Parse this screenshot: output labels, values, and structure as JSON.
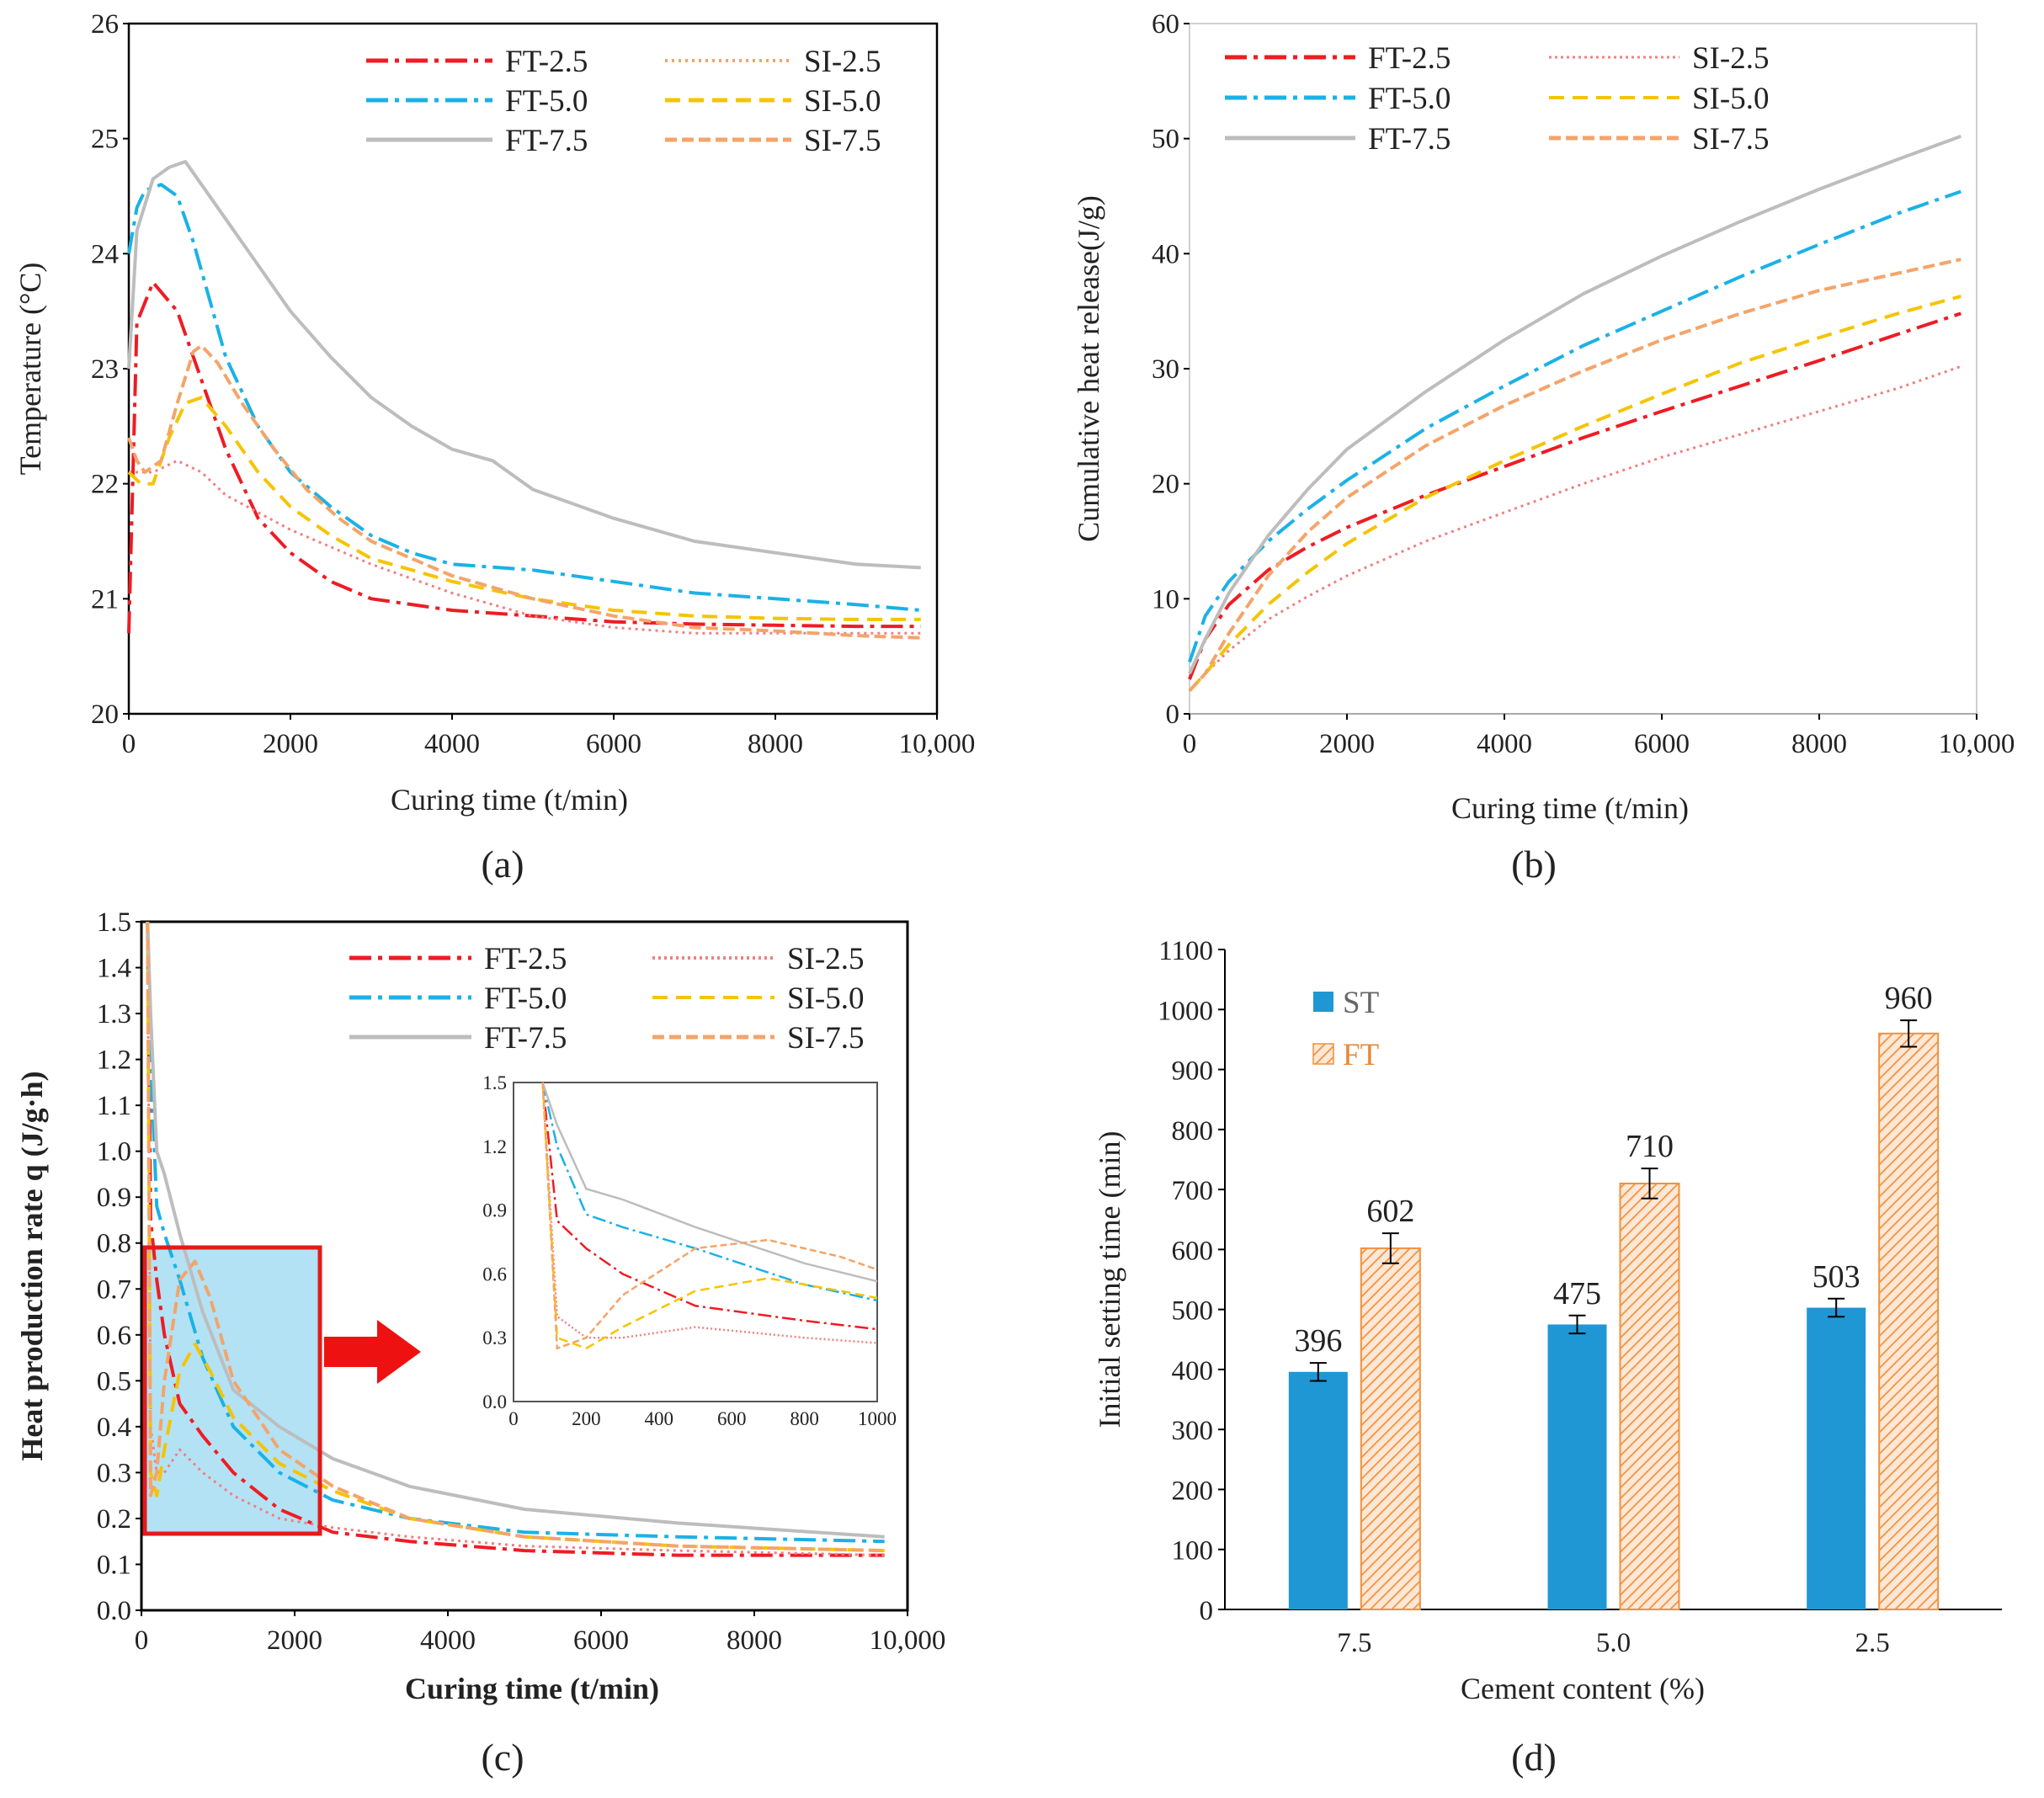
{
  "colors": {
    "FT-2.5": "#ee1c24",
    "FT-5.0": "#1ab2e6",
    "FT-7.5": "#bdbdbd",
    "SI-2.5": "#f08080",
    "SI-5.0": "#f5c400",
    "SI-7.5": "#f4a46a",
    "ST_bar": "#1f97d4",
    "FT_bar": "#f2913c"
  },
  "chart_data": [
    {
      "panel": "a",
      "caption": "(a)",
      "type": "line",
      "xlabel": "Curing time (t/min)",
      "ylabel": "Temperature (°C)",
      "xlim": [
        0,
        10000
      ],
      "ylim": [
        20,
        26
      ],
      "xticks": [
        "0",
        "2000",
        "4000",
        "6000",
        "8000",
        "10,000"
      ],
      "yticks": [
        "20",
        "21",
        "22",
        "23",
        "24",
        "25",
        "26"
      ],
      "legend": [
        "FT-2.5",
        "SI-2.5",
        "FT-5.0",
        "SI-5.0",
        "FT-7.5",
        "SI-7.5"
      ],
      "series": [
        {
          "name": "FT-2.5",
          "x": [
            0,
            100,
            300,
            600,
            900,
            1200,
            1600,
            2000,
            2500,
            3000,
            4000,
            5000,
            6000,
            7000,
            8000,
            9000,
            9800
          ],
          "y": [
            20.7,
            23.4,
            23.75,
            23.5,
            22.9,
            22.3,
            21.7,
            21.4,
            21.15,
            21.0,
            20.9,
            20.85,
            20.8,
            20.78,
            20.77,
            20.76,
            20.76
          ]
        },
        {
          "name": "SI-2.5",
          "x": [
            0,
            100,
            300,
            600,
            900,
            1200,
            1600,
            2000,
            2500,
            3000,
            4000,
            5000,
            6000,
            7000,
            8000,
            9000,
            9800
          ],
          "y": [
            22.1,
            22.1,
            22.1,
            22.2,
            22.1,
            21.9,
            21.75,
            21.6,
            21.45,
            21.3,
            21.05,
            20.85,
            20.75,
            20.7,
            20.7,
            20.7,
            20.7
          ]
        },
        {
          "name": "FT-5.0",
          "x": [
            0,
            100,
            200,
            400,
            600,
            800,
            1000,
            1200,
            1600,
            2000,
            2500,
            3000,
            3500,
            4000,
            5000,
            6000,
            7000,
            8000,
            9000,
            9800
          ],
          "y": [
            24.0,
            24.4,
            24.55,
            24.6,
            24.5,
            24.1,
            23.6,
            23.1,
            22.5,
            22.1,
            21.8,
            21.55,
            21.4,
            21.3,
            21.25,
            21.15,
            21.05,
            21.0,
            20.95,
            20.9
          ]
        },
        {
          "name": "SI-5.0",
          "x": [
            0,
            150,
            300,
            500,
            700,
            900,
            1200,
            1600,
            2000,
            2500,
            3000,
            4000,
            5000,
            6000,
            7000,
            8000,
            9000,
            9800
          ],
          "y": [
            22.1,
            22.0,
            22.0,
            22.4,
            22.7,
            22.75,
            22.5,
            22.1,
            21.8,
            21.55,
            21.35,
            21.15,
            21.0,
            20.9,
            20.85,
            20.83,
            20.82,
            20.82
          ]
        },
        {
          "name": "FT-7.5",
          "x": [
            0,
            100,
            300,
            500,
            700,
            900,
            1200,
            1600,
            2000,
            2500,
            3000,
            3500,
            4000,
            4500,
            5000,
            6000,
            7000,
            8000,
            9000,
            9800
          ],
          "y": [
            23.0,
            24.2,
            24.65,
            24.75,
            24.8,
            24.6,
            24.3,
            23.9,
            23.5,
            23.1,
            22.75,
            22.5,
            22.3,
            22.2,
            21.95,
            21.7,
            21.5,
            21.4,
            21.3,
            21.27
          ]
        },
        {
          "name": "SI-7.5",
          "x": [
            0,
            100,
            200,
            400,
            600,
            800,
            900,
            1100,
            1400,
            1800,
            2200,
            2600,
            3000,
            4000,
            5000,
            6000,
            7000,
            8000,
            9000,
            9800
          ],
          "y": [
            22.4,
            22.2,
            22.1,
            22.2,
            22.7,
            23.15,
            23.2,
            23.05,
            22.7,
            22.3,
            21.95,
            21.7,
            21.5,
            21.2,
            21.0,
            20.85,
            20.75,
            20.72,
            20.68,
            20.66
          ]
        }
      ]
    },
    {
      "panel": "b",
      "caption": "(b)",
      "type": "line",
      "xlabel": "Curing time (t/min)",
      "ylabel": "Cumulative heat release(J/g)",
      "xlim": [
        0,
        10000
      ],
      "ylim": [
        0,
        60
      ],
      "xticks": [
        "0",
        "2000",
        "4000",
        "6000",
        "8000",
        "10,000"
      ],
      "yticks": [
        "0",
        "10",
        "20",
        "30",
        "40",
        "50",
        "60"
      ],
      "legend": [
        "FT-2.5",
        "SI-2.5",
        "FT-5.0",
        "SI-5.0",
        "FT-7.5",
        "SI-7.5"
      ],
      "series": [
        {
          "name": "FT-2.5",
          "x": [
            0,
            200,
            500,
            1000,
            1500,
            2000,
            3000,
            4000,
            5000,
            6000,
            7000,
            8000,
            9000,
            9800
          ],
          "y": [
            3,
            6.5,
            9.5,
            12.5,
            14.5,
            16.2,
            19,
            21.5,
            24,
            26.3,
            28.5,
            30.7,
            33,
            34.8
          ]
        },
        {
          "name": "SI-2.5",
          "x": [
            0,
            200,
            500,
            1000,
            1500,
            2000,
            3000,
            4000,
            5000,
            6000,
            7000,
            8000,
            9000,
            9800
          ],
          "y": [
            2,
            3.5,
            5.5,
            8.2,
            10.2,
            12,
            15,
            17.5,
            20,
            22.3,
            24.3,
            26.3,
            28.3,
            30.2
          ]
        },
        {
          "name": "FT-5.0",
          "x": [
            0,
            200,
            500,
            1000,
            1500,
            2000,
            3000,
            4000,
            5000,
            6000,
            7000,
            8000,
            9000,
            9800
          ],
          "y": [
            4.5,
            8.5,
            11.5,
            15,
            17.8,
            20.3,
            24.8,
            28.5,
            32,
            35,
            38,
            40.8,
            43.5,
            45.4
          ]
        },
        {
          "name": "SI-5.0",
          "x": [
            0,
            200,
            500,
            1000,
            1500,
            2000,
            3000,
            4000,
            5000,
            6000,
            7000,
            8000,
            9000,
            9800
          ],
          "y": [
            2,
            3.5,
            6,
            9.5,
            12.3,
            14.8,
            18.8,
            22,
            25,
            27.8,
            30.5,
            32.7,
            34.8,
            36.3
          ]
        },
        {
          "name": "FT-7.5",
          "x": [
            0,
            200,
            500,
            1000,
            1500,
            2000,
            3000,
            4000,
            5000,
            6000,
            7000,
            8000,
            9000,
            9800
          ],
          "y": [
            3.5,
            6.5,
            10.5,
            15.5,
            19.5,
            23,
            28,
            32.5,
            36.5,
            39.8,
            42.8,
            45.6,
            48.2,
            50.2
          ]
        },
        {
          "name": "SI-7.5",
          "x": [
            0,
            200,
            500,
            1000,
            1500,
            2000,
            3000,
            4000,
            5000,
            6000,
            7000,
            8000,
            9000,
            9800
          ],
          "y": [
            2,
            3.5,
            7,
            12,
            15.8,
            18.8,
            23.3,
            26.8,
            29.8,
            32.5,
            34.8,
            36.8,
            38.3,
            39.5
          ]
        }
      ]
    },
    {
      "panel": "c",
      "caption": "(c)",
      "type": "line",
      "xlabel": "Curing time (t/min)",
      "ylabel": "Heat production rate q (J/g·h)",
      "xlim": [
        0,
        10000
      ],
      "ylim": [
        0,
        1.5
      ],
      "xticks": [
        "0",
        "2000",
        "4000",
        "6000",
        "8000",
        "10,000"
      ],
      "yticks": [
        "0.0",
        "0.1",
        "0.2",
        "0.3",
        "0.4",
        "0.5",
        "0.6",
        "0.7",
        "0.8",
        "0.9",
        "1.0",
        "1.1",
        "1.2",
        "1.3",
        "1.4",
        "1.5"
      ],
      "legend": [
        "FT-2.5",
        "SI-2.5",
        "FT-5.0",
        "SI-5.0",
        "FT-7.5",
        "SI-7.5"
      ],
      "series": [
        {
          "name": "FT-2.5",
          "x": [
            80,
            120,
            200,
            300,
            500,
            800,
            1200,
            1800,
            2500,
            3500,
            5000,
            7000,
            9700
          ],
          "y": [
            1.5,
            0.85,
            0.72,
            0.6,
            0.45,
            0.38,
            0.3,
            0.22,
            0.17,
            0.15,
            0.13,
            0.12,
            0.12
          ]
        },
        {
          "name": "SI-2.5",
          "x": [
            80,
            120,
            200,
            300,
            500,
            800,
            1200,
            1800,
            2500,
            3500,
            5000,
            7000,
            9700
          ],
          "y": [
            1.5,
            0.4,
            0.3,
            0.3,
            0.35,
            0.3,
            0.25,
            0.2,
            0.18,
            0.16,
            0.14,
            0.13,
            0.12
          ]
        },
        {
          "name": "FT-5.0",
          "x": [
            80,
            120,
            200,
            300,
            500,
            800,
            1200,
            1800,
            2500,
            3500,
            5000,
            7000,
            9700
          ],
          "y": [
            1.5,
            1.2,
            0.88,
            0.82,
            0.72,
            0.55,
            0.4,
            0.3,
            0.24,
            0.2,
            0.17,
            0.16,
            0.15
          ]
        },
        {
          "name": "SI-5.0",
          "x": [
            80,
            120,
            200,
            300,
            500,
            700,
            900,
            1200,
            1800,
            2500,
            3500,
            5000,
            7000,
            9700
          ],
          "y": [
            1.5,
            0.3,
            0.25,
            0.35,
            0.52,
            0.58,
            0.52,
            0.42,
            0.32,
            0.26,
            0.2,
            0.16,
            0.14,
            0.13
          ]
        },
        {
          "name": "FT-7.5",
          "x": [
            80,
            120,
            200,
            300,
            500,
            800,
            1200,
            1800,
            2500,
            3500,
            5000,
            7000,
            9700
          ],
          "y": [
            1.5,
            1.3,
            1.0,
            0.95,
            0.82,
            0.65,
            0.48,
            0.4,
            0.33,
            0.27,
            0.22,
            0.19,
            0.16
          ]
        },
        {
          "name": "SI-7.5",
          "x": [
            80,
            120,
            200,
            300,
            500,
            700,
            900,
            1200,
            1800,
            2500,
            3500,
            5000,
            7000,
            9700
          ],
          "y": [
            1.5,
            0.25,
            0.3,
            0.5,
            0.72,
            0.76,
            0.68,
            0.5,
            0.35,
            0.27,
            0.2,
            0.16,
            0.14,
            0.13
          ]
        }
      ],
      "inset": {
        "xlim": [
          0,
          1000
        ],
        "ylim": [
          0,
          1.5
        ],
        "xticks": [
          "0",
          "200",
          "400",
          "600",
          "800",
          "1000"
        ],
        "yticks": [
          "0.0",
          "0.3",
          "0.6",
          "0.9",
          "1.2",
          "1.5"
        ]
      }
    },
    {
      "panel": "d",
      "caption": "(d)",
      "type": "bar",
      "xlabel": "Cement content (%)",
      "ylabel": "Initial setting time (min)",
      "ylim": [
        0,
        1100
      ],
      "yticks": [
        "0",
        "100",
        "200",
        "300",
        "400",
        "500",
        "600",
        "700",
        "800",
        "900",
        "1000",
        "1100"
      ],
      "categories": [
        "7.5",
        "5.0",
        "2.5"
      ],
      "series": [
        {
          "name": "ST",
          "values": [
            396,
            475,
            503
          ],
          "labels": [
            "396",
            "475",
            "503"
          ],
          "errors": [
            15,
            15,
            15
          ]
        },
        {
          "name": "FT",
          "values": [
            602,
            710,
            960
          ],
          "labels": [
            "602",
            "710",
            "960"
          ],
          "errors": [
            25,
            25,
            22
          ]
        }
      ]
    }
  ]
}
